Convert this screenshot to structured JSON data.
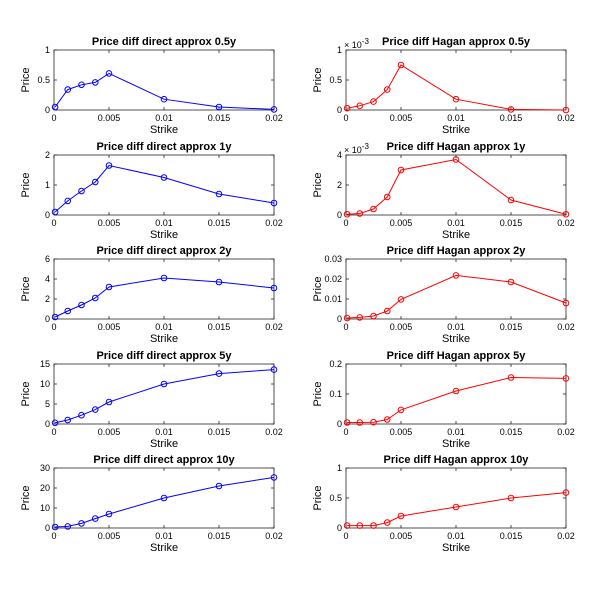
{
  "chart_data": [
    {
      "type": "line",
      "title": "Price diff direct approx 0.5y",
      "xlabel": "Strike",
      "ylabel": "Price",
      "xlim": [
        0,
        0.02
      ],
      "ylim": [
        0,
        1
      ],
      "xticks": [
        0,
        0.005,
        0.01,
        0.015,
        0.02
      ],
      "xtick_labels": [
        "0",
        "0.005",
        "0.01",
        "0.015",
        "0.02"
      ],
      "yticks": [
        0,
        0.5,
        1
      ],
      "ytick_labels": [
        "0",
        "0.5",
        "1"
      ],
      "exponent_label": "",
      "color": "#0000ff",
      "x": [
        0.0001,
        0.00125,
        0.0025,
        0.00375,
        0.005,
        0.01,
        0.015,
        0.02
      ],
      "y": [
        0.05,
        0.34,
        0.42,
        0.46,
        0.61,
        0.18,
        0.05,
        0.01
      ]
    },
    {
      "type": "line",
      "title": "Price diff Hagan approx 0.5y",
      "xlabel": "Strike",
      "ylabel": "Price",
      "xlim": [
        0,
        0.02
      ],
      "ylim": [
        0,
        1
      ],
      "xticks": [
        0,
        0.005,
        0.01,
        0.015,
        0.02
      ],
      "xtick_labels": [
        "0",
        "0.005",
        "0.01",
        "0.015",
        "0.02"
      ],
      "yticks": [
        0,
        0.5,
        1
      ],
      "ytick_labels": [
        "0",
        "0.5",
        "1"
      ],
      "exponent_label": "-3",
      "color": "#ff0000",
      "x": [
        0.0001,
        0.00125,
        0.0025,
        0.00375,
        0.005,
        0.01,
        0.015,
        0.02
      ],
      "y": [
        0.03,
        0.07,
        0.14,
        0.34,
        0.75,
        0.18,
        0.01,
        0.0
      ]
    },
    {
      "type": "line",
      "title": "Price diff direct approx 1y",
      "xlabel": "Strike",
      "ylabel": "Price",
      "xlim": [
        0,
        0.02
      ],
      "ylim": [
        0,
        2
      ],
      "xticks": [
        0,
        0.005,
        0.01,
        0.015,
        0.02
      ],
      "xtick_labels": [
        "0",
        "0.005",
        "0.01",
        "0.015",
        "0.02"
      ],
      "yticks": [
        0,
        1,
        2
      ],
      "ytick_labels": [
        "0",
        "1",
        "2"
      ],
      "exponent_label": "",
      "color": "#0000ff",
      "x": [
        0.0001,
        0.00125,
        0.0025,
        0.00375,
        0.005,
        0.01,
        0.015,
        0.02
      ],
      "y": [
        0.1,
        0.47,
        0.8,
        1.1,
        1.65,
        1.25,
        0.7,
        0.4
      ]
    },
    {
      "type": "line",
      "title": "Price diff Hagan approx 1y",
      "xlabel": "Strike",
      "ylabel": "Price",
      "xlim": [
        0,
        0.02
      ],
      "ylim": [
        0,
        4
      ],
      "xticks": [
        0,
        0.005,
        0.01,
        0.015,
        0.02
      ],
      "xtick_labels": [
        "0",
        "0.005",
        "0.01",
        "0.015",
        "0.02"
      ],
      "yticks": [
        0,
        2,
        4
      ],
      "ytick_labels": [
        "0",
        "2",
        "4"
      ],
      "exponent_label": "-3",
      "color": "#ff0000",
      "x": [
        0.0001,
        0.00125,
        0.0025,
        0.00375,
        0.005,
        0.01,
        0.015,
        0.02
      ],
      "y": [
        0.05,
        0.1,
        0.4,
        1.2,
        3.0,
        3.7,
        1.0,
        0.05
      ]
    },
    {
      "type": "line",
      "title": "Price diff direct approx 2y",
      "xlabel": "Strike",
      "ylabel": "Price",
      "xlim": [
        0,
        0.02
      ],
      "ylim": [
        0,
        6
      ],
      "xticks": [
        0,
        0.005,
        0.01,
        0.015,
        0.02
      ],
      "xtick_labels": [
        "0",
        "0.005",
        "0.01",
        "0.015",
        "0.02"
      ],
      "yticks": [
        0,
        2,
        4,
        6
      ],
      "ytick_labels": [
        "0",
        "2",
        "4",
        "6"
      ],
      "exponent_label": "",
      "color": "#0000ff",
      "x": [
        0.0001,
        0.00125,
        0.0025,
        0.00375,
        0.005,
        0.01,
        0.015,
        0.02
      ],
      "y": [
        0.2,
        0.8,
        1.4,
        2.1,
        3.2,
        4.1,
        3.7,
        3.1
      ]
    },
    {
      "type": "line",
      "title": "Price diff Hagan approx 2y",
      "xlabel": "Strike",
      "ylabel": "Price",
      "xlim": [
        0,
        0.02
      ],
      "ylim": [
        0,
        0.03
      ],
      "xticks": [
        0,
        0.005,
        0.01,
        0.015,
        0.02
      ],
      "xtick_labels": [
        "0",
        "0.005",
        "0.01",
        "0.015",
        "0.02"
      ],
      "yticks": [
        0,
        0.01,
        0.02,
        0.03
      ],
      "ytick_labels": [
        "0",
        "0.01",
        "0.02",
        "0.03"
      ],
      "exponent_label": "",
      "color": "#ff0000",
      "x": [
        0.0001,
        0.00125,
        0.0025,
        0.00375,
        0.005,
        0.01,
        0.015,
        0.02
      ],
      "y": [
        0.0005,
        0.0008,
        0.0015,
        0.004,
        0.0098,
        0.0218,
        0.0185,
        0.008
      ]
    },
    {
      "type": "line",
      "title": "Price diff direct approx 5y",
      "xlabel": "Strike",
      "ylabel": "Price",
      "xlim": [
        0,
        0.02
      ],
      "ylim": [
        0,
        15
      ],
      "xticks": [
        0,
        0.005,
        0.01,
        0.015,
        0.02
      ],
      "xtick_labels": [
        "0",
        "0.005",
        "0.01",
        "0.015",
        "0.02"
      ],
      "yticks": [
        0,
        5,
        10,
        15
      ],
      "ytick_labels": [
        "0",
        "5",
        "10",
        "15"
      ],
      "exponent_label": "",
      "color": "#0000ff",
      "x": [
        0.0001,
        0.00125,
        0.0025,
        0.00375,
        0.005,
        0.01,
        0.015,
        0.02
      ],
      "y": [
        0.3,
        1.0,
        2.2,
        3.6,
        5.5,
        10.0,
        12.6,
        13.6
      ]
    },
    {
      "type": "line",
      "title": "Price diff Hagan approx 5y",
      "xlabel": "Strike",
      "ylabel": "Price",
      "xlim": [
        0,
        0.02
      ],
      "ylim": [
        0,
        0.2
      ],
      "xticks": [
        0,
        0.005,
        0.01,
        0.015,
        0.02
      ],
      "xtick_labels": [
        "0",
        "0.005",
        "0.01",
        "0.015",
        "0.02"
      ],
      "yticks": [
        0,
        0.1,
        0.2
      ],
      "ytick_labels": [
        "0",
        "0.1",
        "0.2"
      ],
      "exponent_label": "",
      "color": "#ff0000",
      "x": [
        0.0001,
        0.00125,
        0.0025,
        0.00375,
        0.005,
        0.01,
        0.015,
        0.02
      ],
      "y": [
        0.005,
        0.005,
        0.006,
        0.015,
        0.047,
        0.11,
        0.155,
        0.152
      ]
    },
    {
      "type": "line",
      "title": "Price diff direct approx 10y",
      "xlabel": "Strike",
      "ylabel": "Price",
      "xlim": [
        0,
        0.02
      ],
      "ylim": [
        0,
        30
      ],
      "xticks": [
        0,
        0.005,
        0.01,
        0.015,
        0.02
      ],
      "xtick_labels": [
        "0",
        "0.005",
        "0.01",
        "0.015",
        "0.02"
      ],
      "yticks": [
        0,
        10,
        20,
        30
      ],
      "ytick_labels": [
        "0",
        "10",
        "20",
        "30"
      ],
      "exponent_label": "",
      "color": "#0000ff",
      "x": [
        0.0001,
        0.00125,
        0.0025,
        0.00375,
        0.005,
        0.01,
        0.015,
        0.02
      ],
      "y": [
        0.5,
        0.8,
        2.3,
        4.7,
        7.0,
        15.0,
        21.0,
        25.3
      ]
    },
    {
      "type": "line",
      "title": "Price diff Hagan approx 10y",
      "xlabel": "Strike",
      "ylabel": "Price",
      "xlim": [
        0,
        0.02
      ],
      "ylim": [
        0,
        1
      ],
      "xticks": [
        0,
        0.005,
        0.01,
        0.015,
        0.02
      ],
      "xtick_labels": [
        "0",
        "0.005",
        "0.01",
        "0.015",
        "0.02"
      ],
      "yticks": [
        0,
        0.5,
        1
      ],
      "ytick_labels": [
        "0",
        "0.5",
        "1"
      ],
      "exponent_label": "",
      "color": "#ff0000",
      "x": [
        0.0001,
        0.00125,
        0.0025,
        0.00375,
        0.005,
        0.01,
        0.015,
        0.02
      ],
      "y": [
        0.04,
        0.04,
        0.04,
        0.09,
        0.2,
        0.35,
        0.5,
        0.59
      ]
    }
  ]
}
